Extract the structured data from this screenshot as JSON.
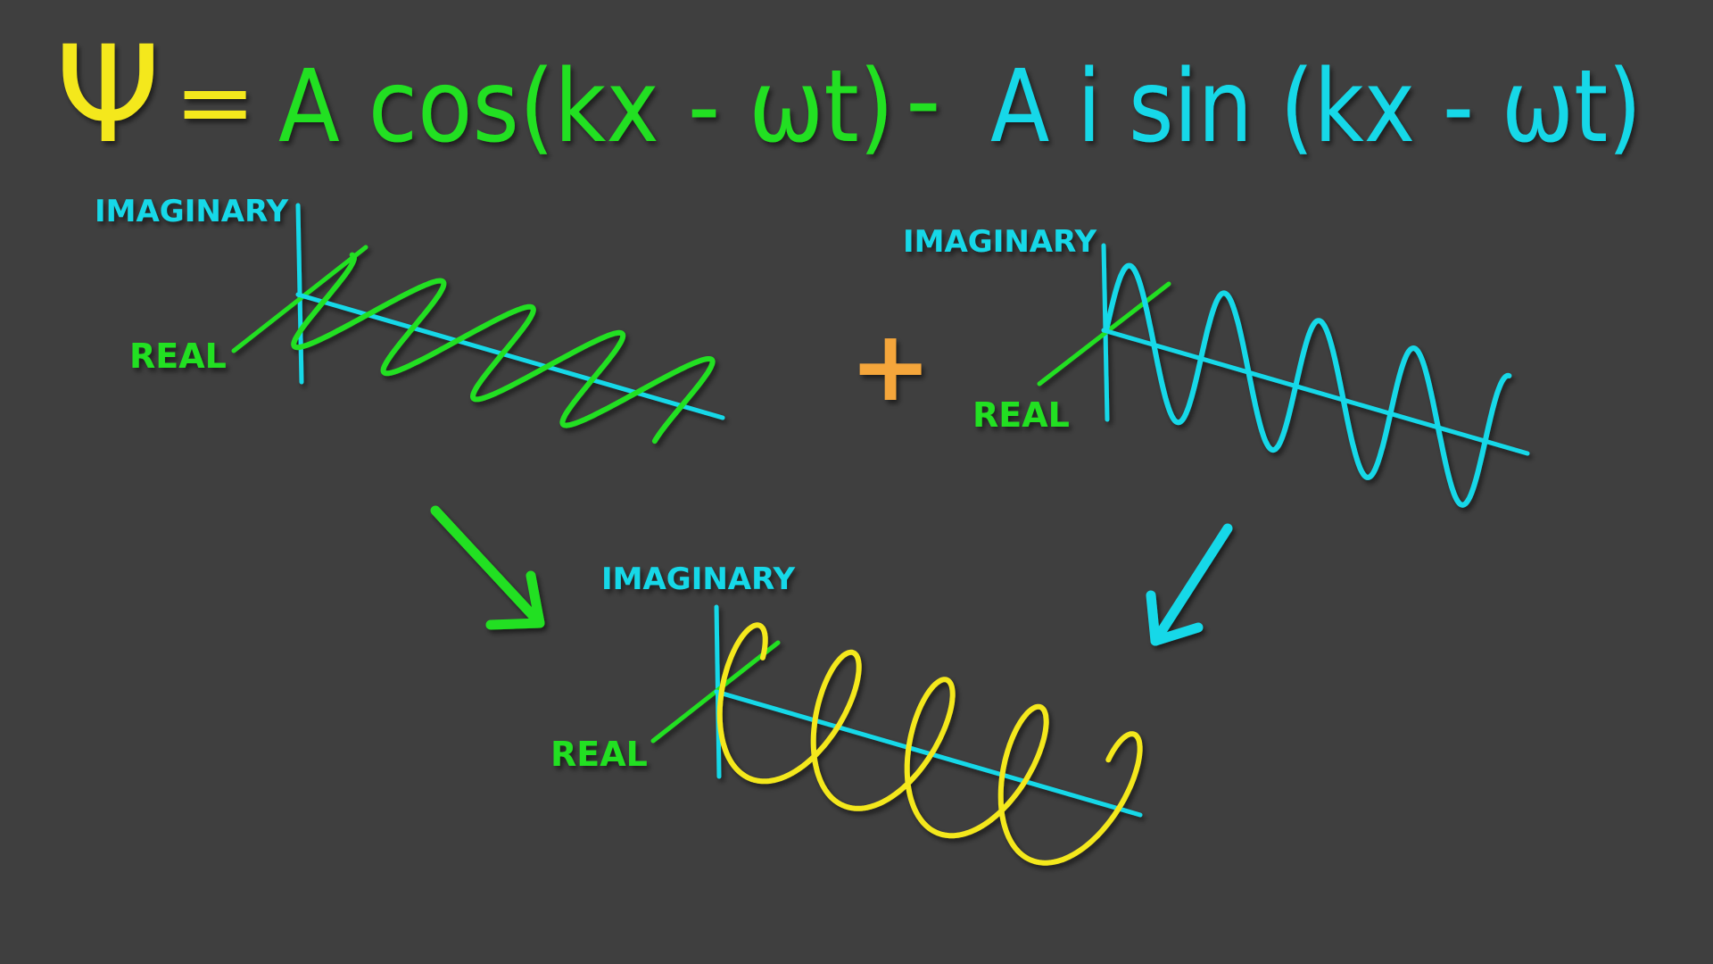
{
  "colors": {
    "background": "#3f3f3f",
    "green": "#22e022",
    "cyan": "#19d8e8",
    "yellow": "#f4e81c",
    "orange": "#f5a63a"
  },
  "equation": {
    "psi": "Ψ",
    "equals": "=",
    "real_part": "A cos(kx - ωt)",
    "minus": "-",
    "imag_part": "A i sin (kx - ωt)"
  },
  "plus_sign": "+",
  "cos_plot": {
    "imaginary_label": "IMAGINARY",
    "real_label": "REAL"
  },
  "sin_plot": {
    "imaginary_label": "IMAGINARY",
    "real_label": "REAL"
  },
  "helix_plot": {
    "imaginary_label": "IMAGINARY",
    "real_label": "REAL"
  }
}
